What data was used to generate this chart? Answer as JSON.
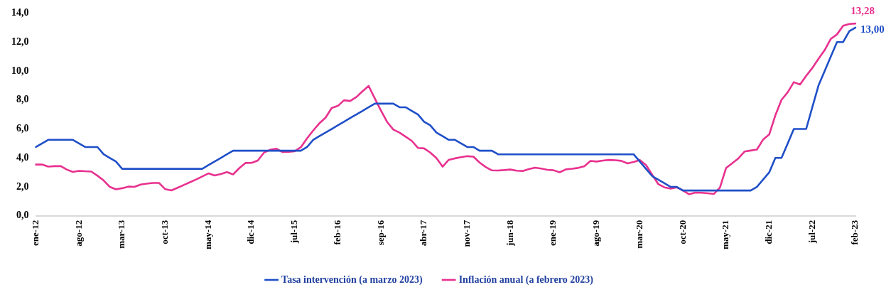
{
  "chart_data": {
    "type": "line",
    "categories": [
      "ene-12",
      null,
      null,
      null,
      null,
      null,
      null,
      "ago-12",
      null,
      null,
      null,
      null,
      null,
      null,
      "mar-13",
      null,
      null,
      null,
      null,
      null,
      null,
      "oct-13",
      null,
      null,
      null,
      null,
      null,
      null,
      "may-14",
      null,
      null,
      null,
      null,
      null,
      null,
      "dic-14",
      null,
      null,
      null,
      null,
      null,
      null,
      "jul-15",
      null,
      null,
      null,
      null,
      null,
      null,
      "feb-16",
      null,
      null,
      null,
      null,
      null,
      null,
      "sep-16",
      null,
      null,
      null,
      null,
      null,
      null,
      "abr-17",
      null,
      null,
      null,
      null,
      null,
      null,
      "nov-17",
      null,
      null,
      null,
      null,
      null,
      null,
      "jun-18",
      null,
      null,
      null,
      null,
      null,
      null,
      "ene-19",
      null,
      null,
      null,
      null,
      null,
      null,
      "ago-19",
      null,
      null,
      null,
      null,
      null,
      null,
      "mar-20",
      null,
      null,
      null,
      null,
      null,
      null,
      "oct-20",
      null,
      null,
      null,
      null,
      null,
      null,
      "may-21",
      null,
      null,
      null,
      null,
      null,
      null,
      "dic-21",
      null,
      null,
      null,
      null,
      null,
      null,
      "jul-22",
      null,
      null,
      null,
      null,
      null,
      null,
      "feb-23"
    ],
    "series": [
      {
        "name": "Tasa intervención (a marzo 2023)",
        "color": "#1f4fc8",
        "values": [
          4.75,
          5.0,
          5.25,
          5.25,
          5.25,
          5.25,
          5.25,
          5.0,
          4.75,
          4.75,
          4.75,
          4.25,
          4.0,
          3.75,
          3.25,
          3.25,
          3.25,
          3.25,
          3.25,
          3.25,
          3.25,
          3.25,
          3.25,
          3.25,
          3.25,
          3.25,
          3.25,
          3.25,
          3.5,
          3.75,
          4.0,
          4.25,
          4.5,
          4.5,
          4.5,
          4.5,
          4.5,
          4.5,
          4.5,
          4.5,
          4.5,
          4.5,
          4.5,
          4.5,
          4.75,
          5.25,
          5.5,
          5.75,
          6.0,
          6.25,
          6.5,
          6.75,
          7.0,
          7.25,
          7.5,
          7.75,
          7.75,
          7.75,
          7.75,
          7.5,
          7.5,
          7.25,
          7.0,
          6.5,
          6.25,
          5.75,
          5.5,
          5.25,
          5.25,
          5.0,
          4.75,
          4.75,
          4.5,
          4.5,
          4.5,
          4.25,
          4.25,
          4.25,
          4.25,
          4.25,
          4.25,
          4.25,
          4.25,
          4.25,
          4.25,
          4.25,
          4.25,
          4.25,
          4.25,
          4.25,
          4.25,
          4.25,
          4.25,
          4.25,
          4.25,
          4.25,
          4.25,
          4.25,
          3.75,
          3.25,
          2.75,
          2.5,
          2.25,
          2.0,
          2.0,
          1.75,
          1.75,
          1.75,
          1.75,
          1.75,
          1.75,
          1.75,
          1.75,
          1.75,
          1.75,
          1.75,
          1.75,
          2.0,
          2.5,
          3.0,
          4.0,
          4.0,
          5.0,
          6.0,
          6.0,
          6.0,
          7.5,
          9.0,
          10.0,
          11.0,
          12.0,
          12.0,
          12.75,
          13.0
        ]
      },
      {
        "name": "Inflación anual (a febrero 2023)",
        "color": "#e8318f",
        "values": [
          3.54,
          3.55,
          3.4,
          3.43,
          3.44,
          3.2,
          3.03,
          3.11,
          3.08,
          3.06,
          2.77,
          2.44,
          2.0,
          1.83,
          1.91,
          2.02,
          2.0,
          2.16,
          2.22,
          2.27,
          2.27,
          1.84,
          1.76,
          1.94,
          2.13,
          2.32,
          2.51,
          2.72,
          2.93,
          2.79,
          2.89,
          3.02,
          2.86,
          3.29,
          3.65,
          3.66,
          3.82,
          4.36,
          4.56,
          4.64,
          4.41,
          4.42,
          4.46,
          4.74,
          5.35,
          5.89,
          6.39,
          6.77,
          7.45,
          7.59,
          7.98,
          7.93,
          8.2,
          8.6,
          8.97,
          8.1,
          7.27,
          6.48,
          5.96,
          5.75,
          5.47,
          5.18,
          4.69,
          4.66,
          4.37,
          3.99,
          3.4,
          3.87,
          3.97,
          4.05,
          4.12,
          4.09,
          3.68,
          3.37,
          3.14,
          3.13,
          3.16,
          3.2,
          3.12,
          3.1,
          3.23,
          3.33,
          3.27,
          3.18,
          3.15,
          3.01,
          3.21,
          3.25,
          3.31,
          3.43,
          3.79,
          3.75,
          3.82,
          3.86,
          3.84,
          3.8,
          3.62,
          3.72,
          3.86,
          3.51,
          2.85,
          2.19,
          1.97,
          1.88,
          1.97,
          1.75,
          1.49,
          1.61,
          1.6,
          1.56,
          1.51,
          1.95,
          3.3,
          3.63,
          3.97,
          4.44,
          4.51,
          4.58,
          5.26,
          5.62,
          6.94,
          8.01,
          8.53,
          9.23,
          9.07,
          9.67,
          10.21,
          10.84,
          11.44,
          12.22,
          12.53,
          13.12,
          13.25,
          13.28
        ]
      }
    ],
    "ylim": [
      0,
      14
    ],
    "yticks": [
      {
        "value": 0,
        "label": "0,0"
      },
      {
        "value": 2,
        "label": "2,0"
      },
      {
        "value": 4,
        "label": "4,0"
      },
      {
        "value": 6,
        "label": "6,0"
      },
      {
        "value": 8,
        "label": "8,0"
      },
      {
        "value": 10,
        "label": "10,0"
      },
      {
        "value": 12,
        "label": "12,0"
      },
      {
        "value": 14,
        "label": "14,0"
      }
    ],
    "annotations": [
      {
        "text": "13,28",
        "x": "feb-23",
        "y": 13.28
      },
      {
        "text": "13,00",
        "x": "feb-23",
        "y": 13.0
      }
    ],
    "grid": false,
    "legend": "bottom",
    "marker": "none",
    "line_style": "solid"
  }
}
